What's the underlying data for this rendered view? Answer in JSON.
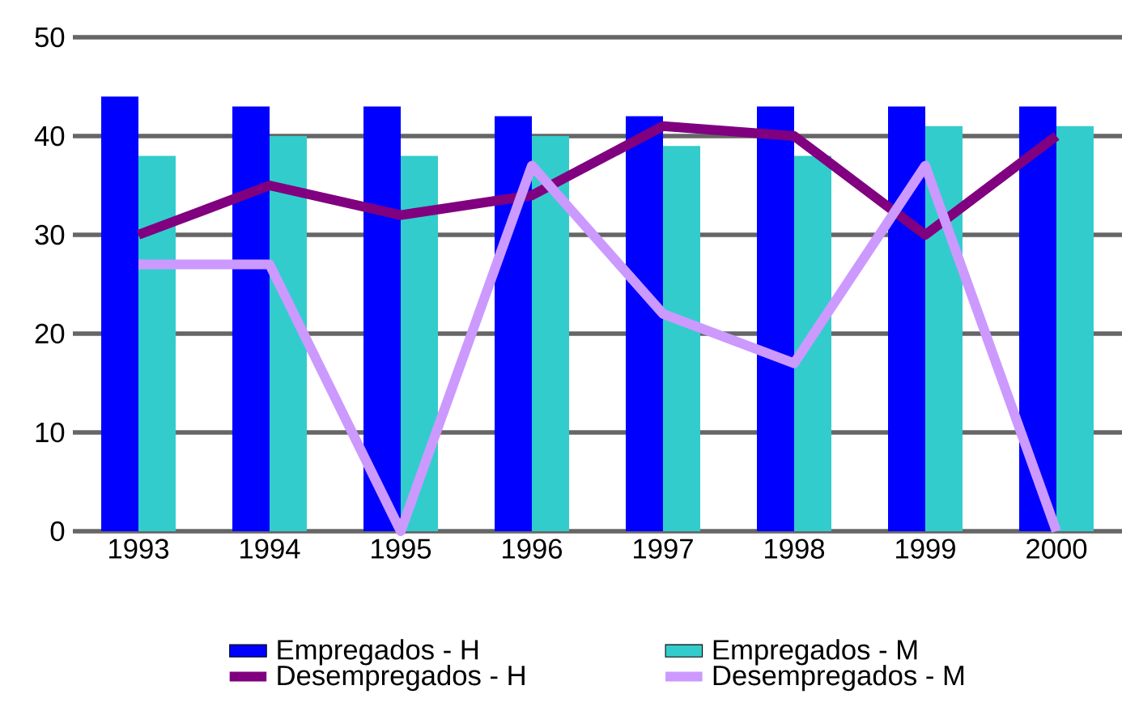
{
  "chart_data": {
    "type": "bar",
    "categories": [
      "1993",
      "1994",
      "1995",
      "1996",
      "1997",
      "1998",
      "1999",
      "2000"
    ],
    "series": [
      {
        "name": "Empregados - H",
        "color": "#0000ff",
        "values": [
          44,
          43,
          43,
          42,
          42,
          43,
          43,
          43
        ]
      },
      {
        "name": "Empregados - M",
        "color": "#33cccc",
        "values": [
          38,
          40,
          38,
          40,
          39,
          38,
          41,
          41
        ]
      },
      {
        "name": "Desempregados - H",
        "type": "line",
        "color": "#800080",
        "values": [
          30,
          35,
          32,
          34,
          41,
          40,
          30,
          40
        ]
      },
      {
        "name": "Desempregados - M",
        "type": "line",
        "color": "#cc99ff",
        "values": [
          27,
          27,
          0,
          37,
          22,
          17,
          37,
          0
        ]
      }
    ],
    "ylim": [
      0,
      50
    ],
    "yticks": [
      0,
      10,
      20,
      30,
      40,
      50
    ],
    "grid": "y",
    "legend": "bottom"
  }
}
